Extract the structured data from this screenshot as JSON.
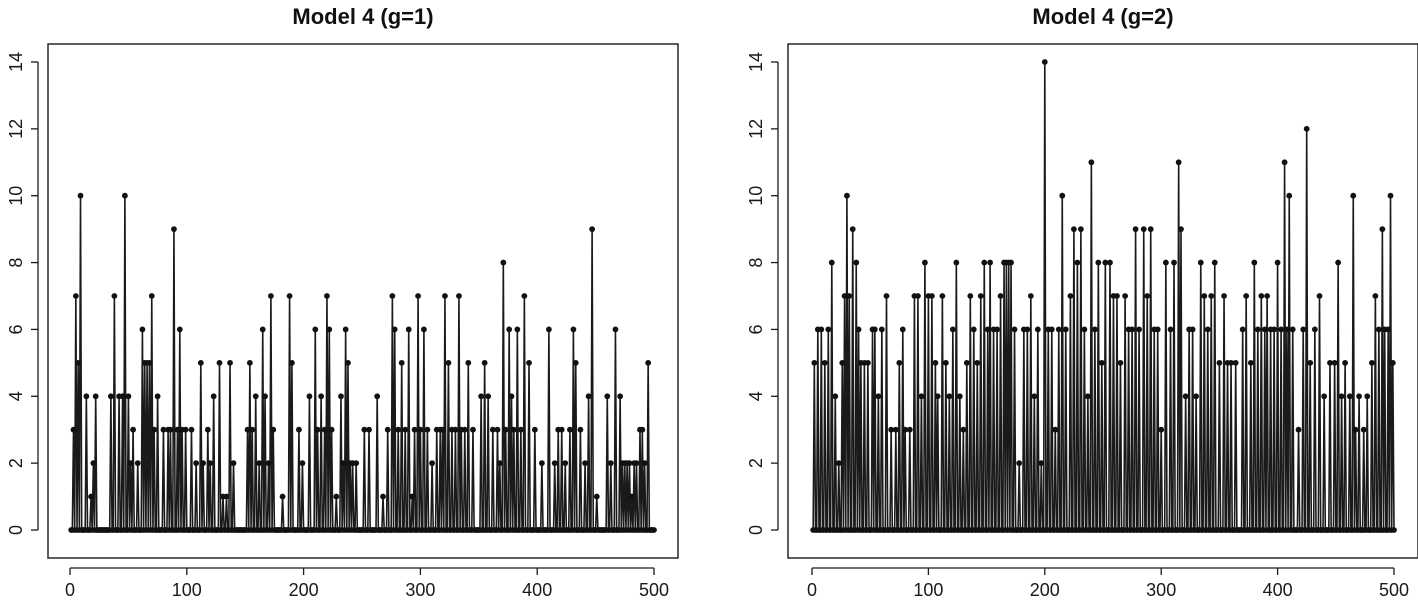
{
  "chart_data": [
    {
      "type": "histogram-spikes",
      "title": "Model 4 (g=1)",
      "xlabel": "",
      "ylabel": "",
      "xlim": [
        0,
        500
      ],
      "ylim": [
        0,
        14
      ],
      "x_ticks": [
        0,
        100,
        200,
        300,
        400,
        500
      ],
      "y_ticks": [
        0,
        2,
        4,
        6,
        8,
        10,
        12,
        14
      ],
      "grid": false,
      "n": 500,
      "x_start": 1,
      "default_value": 0,
      "nonzero": [
        [
          3,
          3
        ],
        [
          5,
          7
        ],
        [
          7,
          5
        ],
        [
          9,
          10
        ],
        [
          14,
          4
        ],
        [
          18,
          1
        ],
        [
          20,
          2
        ],
        [
          22,
          4
        ],
        [
          35,
          4
        ],
        [
          38,
          7
        ],
        [
          42,
          4
        ],
        [
          45,
          4
        ],
        [
          47,
          10
        ],
        [
          50,
          4
        ],
        [
          52,
          2
        ],
        [
          54,
          3
        ],
        [
          58,
          2
        ],
        [
          62,
          6
        ],
        [
          64,
          5
        ],
        [
          66,
          5
        ],
        [
          68,
          5
        ],
        [
          70,
          7
        ],
        [
          72,
          3
        ],
        [
          75,
          4
        ],
        [
          80,
          3
        ],
        [
          84,
          3
        ],
        [
          86,
          3
        ],
        [
          89,
          9
        ],
        [
          92,
          3
        ],
        [
          94,
          6
        ],
        [
          96,
          3
        ],
        [
          99,
          3
        ],
        [
          104,
          3
        ],
        [
          108,
          2
        ],
        [
          112,
          5
        ],
        [
          114,
          2
        ],
        [
          118,
          3
        ],
        [
          120,
          2
        ],
        [
          123,
          4
        ],
        [
          128,
          5
        ],
        [
          131,
          1
        ],
        [
          134,
          1
        ],
        [
          137,
          5
        ],
        [
          140,
          2
        ],
        [
          152,
          3
        ],
        [
          154,
          5
        ],
        [
          156,
          3
        ],
        [
          159,
          4
        ],
        [
          162,
          2
        ],
        [
          165,
          6
        ],
        [
          167,
          4
        ],
        [
          170,
          2
        ],
        [
          172,
          7
        ],
        [
          174,
          3
        ],
        [
          182,
          1
        ],
        [
          188,
          7
        ],
        [
          190,
          5
        ],
        [
          196,
          3
        ],
        [
          199,
          2
        ],
        [
          205,
          4
        ],
        [
          210,
          6
        ],
        [
          212,
          3
        ],
        [
          215,
          4
        ],
        [
          218,
          3
        ],
        [
          220,
          7
        ],
        [
          222,
          6
        ],
        [
          224,
          3
        ],
        [
          228,
          1
        ],
        [
          232,
          4
        ],
        [
          234,
          2
        ],
        [
          236,
          6
        ],
        [
          238,
          5
        ],
        [
          240,
          2
        ],
        [
          242,
          2
        ],
        [
          245,
          2
        ],
        [
          252,
          3
        ],
        [
          256,
          3
        ],
        [
          263,
          4
        ],
        [
          268,
          1
        ],
        [
          272,
          3
        ],
        [
          276,
          7
        ],
        [
          278,
          6
        ],
        [
          281,
          3
        ],
        [
          284,
          5
        ],
        [
          287,
          3
        ],
        [
          290,
          6
        ],
        [
          293,
          1
        ],
        [
          295,
          3
        ],
        [
          298,
          7
        ],
        [
          300,
          3
        ],
        [
          303,
          6
        ],
        [
          306,
          3
        ],
        [
          310,
          2
        ],
        [
          314,
          3
        ],
        [
          317,
          3
        ],
        [
          319,
          3
        ],
        [
          321,
          7
        ],
        [
          324,
          5
        ],
        [
          327,
          3
        ],
        [
          330,
          3
        ],
        [
          333,
          7
        ],
        [
          335,
          3
        ],
        [
          338,
          3
        ],
        [
          341,
          5
        ],
        [
          345,
          3
        ],
        [
          352,
          4
        ],
        [
          355,
          5
        ],
        [
          358,
          4
        ],
        [
          362,
          3
        ],
        [
          366,
          3
        ],
        [
          368,
          2
        ],
        [
          371,
          8
        ],
        [
          373,
          3
        ],
        [
          376,
          6
        ],
        [
          378,
          4
        ],
        [
          380,
          3
        ],
        [
          383,
          6
        ],
        [
          386,
          3
        ],
        [
          389,
          7
        ],
        [
          393,
          5
        ],
        [
          398,
          3
        ],
        [
          404,
          2
        ],
        [
          410,
          6
        ],
        [
          415,
          2
        ],
        [
          418,
          3
        ],
        [
          421,
          3
        ],
        [
          424,
          2
        ],
        [
          428,
          3
        ],
        [
          431,
          6
        ],
        [
          433,
          5
        ],
        [
          437,
          3
        ],
        [
          441,
          2
        ],
        [
          444,
          4
        ],
        [
          447,
          9
        ],
        [
          451,
          1
        ],
        [
          460,
          4
        ],
        [
          463,
          2
        ],
        [
          467,
          6
        ],
        [
          471,
          4
        ],
        [
          473,
          2
        ],
        [
          475,
          2
        ],
        [
          477,
          2
        ],
        [
          479,
          2
        ],
        [
          481,
          1
        ],
        [
          483,
          2
        ],
        [
          485,
          2
        ],
        [
          488,
          3
        ],
        [
          490,
          3
        ],
        [
          492,
          2
        ],
        [
          495,
          5
        ]
      ]
    },
    {
      "type": "histogram-spikes",
      "title": "Model 4 (g=2)",
      "xlabel": "",
      "ylabel": "",
      "xlim": [
        0,
        500
      ],
      "ylim": [
        0,
        14
      ],
      "x_ticks": [
        0,
        100,
        200,
        300,
        400,
        500
      ],
      "y_ticks": [
        0,
        2,
        4,
        6,
        8,
        10,
        12,
        14
      ],
      "grid": false,
      "n": 500,
      "x_start": 1,
      "default_value": 0,
      "nonzero": [
        [
          2,
          5
        ],
        [
          5,
          6
        ],
        [
          8,
          6
        ],
        [
          11,
          5
        ],
        [
          14,
          6
        ],
        [
          17,
          8
        ],
        [
          20,
          4
        ],
        [
          23,
          2
        ],
        [
          26,
          5
        ],
        [
          28,
          7
        ],
        [
          30,
          10
        ],
        [
          32,
          7
        ],
        [
          35,
          9
        ],
        [
          38,
          8
        ],
        [
          40,
          6
        ],
        [
          42,
          5
        ],
        [
          45,
          5
        ],
        [
          48,
          5
        ],
        [
          52,
          6
        ],
        [
          54,
          6
        ],
        [
          57,
          4
        ],
        [
          60,
          6
        ],
        [
          64,
          7
        ],
        [
          68,
          3
        ],
        [
          72,
          3
        ],
        [
          75,
          5
        ],
        [
          78,
          6
        ],
        [
          80,
          3
        ],
        [
          84,
          3
        ],
        [
          88,
          7
        ],
        [
          91,
          7
        ],
        [
          94,
          4
        ],
        [
          97,
          8
        ],
        [
          100,
          7
        ],
        [
          103,
          7
        ],
        [
          106,
          5
        ],
        [
          108,
          4
        ],
        [
          112,
          7
        ],
        [
          115,
          5
        ],
        [
          118,
          4
        ],
        [
          121,
          6
        ],
        [
          124,
          8
        ],
        [
          127,
          4
        ],
        [
          130,
          3
        ],
        [
          133,
          5
        ],
        [
          136,
          7
        ],
        [
          139,
          6
        ],
        [
          142,
          5
        ],
        [
          145,
          7
        ],
        [
          148,
          8
        ],
        [
          151,
          6
        ],
        [
          153,
          8
        ],
        [
          156,
          6
        ],
        [
          159,
          6
        ],
        [
          162,
          7
        ],
        [
          165,
          8
        ],
        [
          167,
          8
        ],
        [
          169,
          8
        ],
        [
          171,
          8
        ],
        [
          174,
          6
        ],
        [
          178,
          2
        ],
        [
          182,
          6
        ],
        [
          185,
          6
        ],
        [
          188,
          7
        ],
        [
          191,
          4
        ],
        [
          194,
          6
        ],
        [
          197,
          2
        ],
        [
          200,
          14
        ],
        [
          203,
          6
        ],
        [
          206,
          6
        ],
        [
          209,
          3
        ],
        [
          212,
          6
        ],
        [
          215,
          10
        ],
        [
          218,
          6
        ],
        [
          222,
          7
        ],
        [
          225,
          9
        ],
        [
          228,
          8
        ],
        [
          231,
          9
        ],
        [
          234,
          6
        ],
        [
          237,
          4
        ],
        [
          240,
          11
        ],
        [
          243,
          6
        ],
        [
          246,
          8
        ],
        [
          249,
          5
        ],
        [
          252,
          8
        ],
        [
          256,
          8
        ],
        [
          259,
          7
        ],
        [
          262,
          7
        ],
        [
          265,
          5
        ],
        [
          269,
          7
        ],
        [
          272,
          6
        ],
        [
          275,
          6
        ],
        [
          278,
          9
        ],
        [
          281,
          6
        ],
        [
          285,
          9
        ],
        [
          288,
          7
        ],
        [
          291,
          9
        ],
        [
          294,
          6
        ],
        [
          297,
          6
        ],
        [
          300,
          3
        ],
        [
          304,
          8
        ],
        [
          308,
          6
        ],
        [
          311,
          8
        ],
        [
          315,
          11
        ],
        [
          317,
          9
        ],
        [
          321,
          4
        ],
        [
          324,
          6
        ],
        [
          327,
          6
        ],
        [
          330,
          4
        ],
        [
          334,
          8
        ],
        [
          337,
          7
        ],
        [
          340,
          6
        ],
        [
          343,
          7
        ],
        [
          346,
          8
        ],
        [
          350,
          5
        ],
        [
          354,
          7
        ],
        [
          357,
          5
        ],
        [
          360,
          5
        ],
        [
          364,
          5
        ],
        [
          370,
          6
        ],
        [
          373,
          7
        ],
        [
          377,
          5
        ],
        [
          380,
          8
        ],
        [
          383,
          6
        ],
        [
          386,
          7
        ],
        [
          389,
          6
        ],
        [
          391,
          7
        ],
        [
          394,
          6
        ],
        [
          397,
          6
        ],
        [
          400,
          8
        ],
        [
          403,
          6
        ],
        [
          406,
          11
        ],
        [
          408,
          6
        ],
        [
          410,
          10
        ],
        [
          413,
          6
        ],
        [
          418,
          3
        ],
        [
          422,
          6
        ],
        [
          425,
          12
        ],
        [
          428,
          5
        ],
        [
          432,
          6
        ],
        [
          436,
          7
        ],
        [
          440,
          4
        ],
        [
          445,
          5
        ],
        [
          449,
          5
        ],
        [
          452,
          8
        ],
        [
          455,
          4
        ],
        [
          458,
          5
        ],
        [
          462,
          4
        ],
        [
          465,
          10
        ],
        [
          467,
          3
        ],
        [
          470,
          4
        ],
        [
          474,
          3
        ],
        [
          477,
          4
        ],
        [
          481,
          5
        ],
        [
          484,
          7
        ],
        [
          487,
          6
        ],
        [
          490,
          9
        ],
        [
          492,
          6
        ],
        [
          495,
          6
        ],
        [
          497,
          10
        ],
        [
          499,
          5
        ]
      ]
    }
  ]
}
